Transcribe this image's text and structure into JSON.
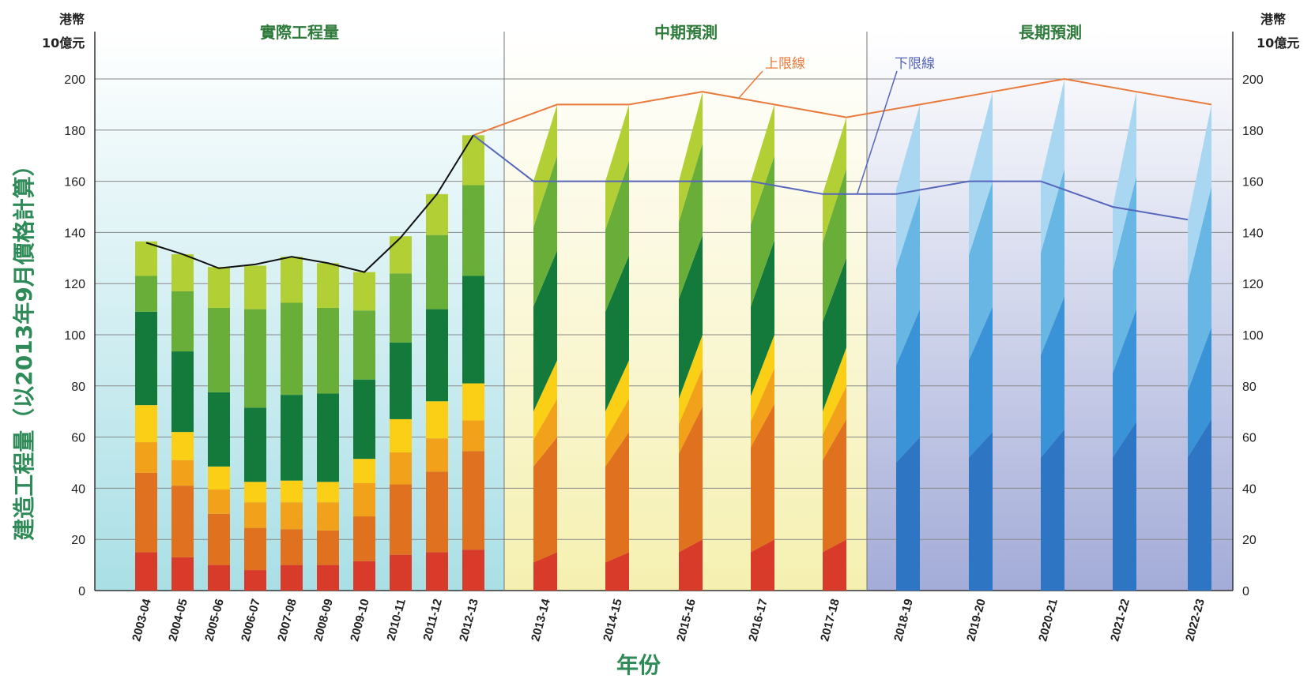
{
  "chart_data": {
    "type": "bar",
    "stacked": true,
    "ylabel": "建造工程量（以2013年9月價格計算）",
    "xlabel": "年份",
    "unit_left_line1": "港幣",
    "unit_left_line2": "10億元",
    "unit_right_line1": "港幣",
    "unit_right_line2": "10億元",
    "ylim": [
      0,
      200
    ],
    "yticks": [
      0,
      20,
      40,
      60,
      80,
      100,
      120,
      140,
      160,
      180,
      200
    ],
    "grid": true,
    "sections": [
      {
        "label": "實際工程量",
        "start": 0,
        "end": 9
      },
      {
        "label": "中期預測",
        "start": 10,
        "end": 14
      },
      {
        "label": "長期預測",
        "start": 15,
        "end": 19
      }
    ],
    "actual": {
      "categories": [
        "2003-04",
        "2004-05",
        "2005-06",
        "2006-07",
        "2007-08",
        "2008-09",
        "2009-10",
        "2010-11",
        "2011-12",
        "2012-13"
      ],
      "cumulative": [
        [
          15,
          46,
          58,
          72.5,
          109,
          123,
          136.5
        ],
        [
          13,
          41,
          51,
          62,
          93.5,
          117,
          131.5
        ],
        [
          10,
          30,
          39.5,
          48.5,
          77.5,
          110.5,
          126.5
        ],
        [
          8,
          24.5,
          34.5,
          42.5,
          71.5,
          110,
          127
        ],
        [
          10,
          24,
          34.5,
          43,
          76.5,
          112.5,
          130.5
        ],
        [
          10,
          23.5,
          34.5,
          42.5,
          77,
          110.5,
          128
        ],
        [
          11.5,
          29,
          42,
          51.5,
          82.5,
          109.5,
          124.5
        ],
        [
          14,
          41.5,
          54,
          67,
          97,
          124,
          138.5
        ],
        [
          15,
          46.5,
          59.5,
          74,
          110,
          139,
          155
        ],
        [
          16,
          54.5,
          66.5,
          81,
          123,
          158.5,
          178
        ]
      ],
      "total_line": [
        136,
        131.5,
        126,
        127.5,
        130.5,
        128,
        124.5,
        138,
        155,
        178
      ]
    },
    "medium_forecast": {
      "categories": [
        "2013-14",
        "2014-15",
        "2015-16",
        "2016-17",
        "2017-18"
      ],
      "lower": [
        [
          11,
          48.5,
          59,
          70,
          111,
          142,
          160
        ],
        [
          11,
          48.5,
          59,
          70,
          109,
          141,
          160
        ],
        [
          15,
          53.5,
          65,
          75,
          114,
          144,
          160
        ],
        [
          15,
          56,
          66,
          76,
          111,
          143,
          160
        ],
        [
          15,
          51,
          61,
          70,
          105,
          136,
          155
        ]
      ],
      "upper": [
        [
          15,
          60,
          75,
          90,
          133,
          170,
          190
        ],
        [
          15,
          62,
          75,
          90,
          131,
          168,
          190
        ],
        [
          20,
          72,
          87,
          100,
          139,
          175,
          195
        ],
        [
          20,
          73,
          87,
          100,
          137,
          170,
          190
        ],
        [
          20,
          67,
          80,
          95,
          130,
          165,
          185
        ]
      ],
      "upper_line": [
        190,
        190,
        195,
        190,
        185
      ],
      "lower_line": [
        160,
        160,
        160,
        160,
        155
      ]
    },
    "long_forecast": {
      "categories": [
        "2018-19",
        "2019-20",
        "2020-21",
        "2021-22",
        "2022-23"
      ],
      "lower": [
        [
          50,
          88,
          126,
          157
        ],
        [
          52,
          90,
          131,
          160
        ],
        [
          52,
          92,
          132,
          160
        ],
        [
          52,
          85,
          125,
          150
        ],
        [
          52,
          78,
          120,
          145
        ]
      ],
      "upper": [
        [
          60,
          110,
          155,
          190
        ],
        [
          62,
          111,
          160,
          195
        ],
        [
          63,
          115,
          165,
          200
        ],
        [
          66,
          110,
          162,
          195
        ],
        [
          67,
          103,
          158,
          190
        ]
      ],
      "upper_line": [
        190,
        195,
        200,
        195,
        190
      ],
      "lower_line": [
        155,
        160,
        160,
        150,
        145
      ]
    },
    "line_labels": {
      "upper": "上限線",
      "lower": "下限線"
    },
    "colors": {
      "actual": [
        "#d93b2b",
        "#e0721f",
        "#f2a11a",
        "#fccf17",
        "#137a3c",
        "#6aae3a",
        "#b2cf35"
      ],
      "long": [
        "#2e75c4",
        "#3a93d6",
        "#68b6e4",
        "#a9d6f0"
      ],
      "upper_line": "#e87a3c",
      "lower_line": "#5566bb",
      "total_line": "#111111",
      "bg_actual": "#a9dfe6",
      "bg_medium": "#f5f0b0",
      "bg_long": "#a3acd8"
    }
  }
}
